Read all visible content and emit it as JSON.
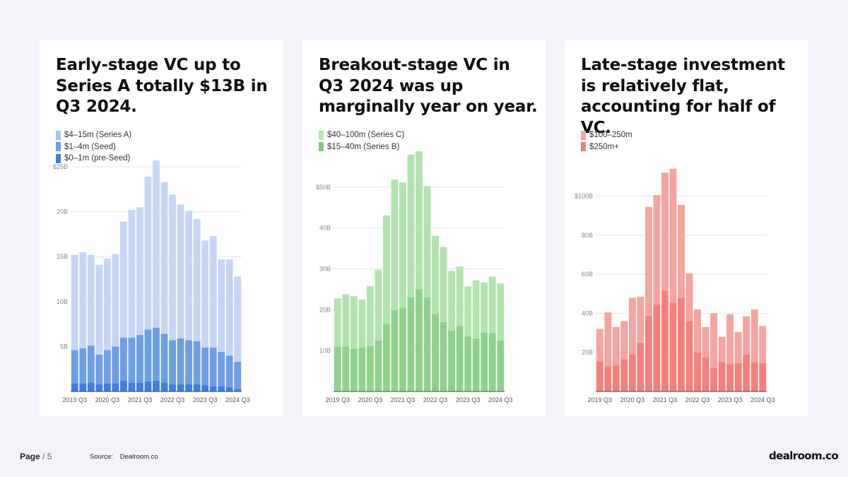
{
  "footer": {
    "page_label": "Page",
    "page_sep": "/",
    "page_number": "5",
    "source_label": "Source:",
    "source_name": "Dealroom.co",
    "logo_text": "dealroom.co"
  },
  "chart_data": [
    {
      "type": "bar",
      "stacked": true,
      "title": "Early-stage VC up to Series A totally $13B in Q3 2024.",
      "legend": [
        "$4–15m (Series A)",
        "$1–4m (Seed)",
        "$0–1m (pre-Seed)"
      ],
      "legend_colors": [
        "#aac4ef",
        "#6d9ee6",
        "#3d7ee5"
      ],
      "ylim": [
        0,
        25
      ],
      "yticks": [
        5,
        10,
        15,
        20,
        25
      ],
      "ytick_labels": [
        "5B",
        "10B",
        "15B",
        "20B",
        "$25B"
      ],
      "xtick_labels": [
        "2019 Q3",
        "2020 Q3",
        "2021 Q3",
        "2022 Q3",
        "2023 Q3",
        "2024 Q3"
      ],
      "categories": [
        "2019 Q3",
        "2019 Q4",
        "2020 Q1",
        "2020 Q2",
        "2020 Q3",
        "2020 Q4",
        "2021 Q1",
        "2021 Q2",
        "2021 Q3",
        "2021 Q4",
        "2022 Q1",
        "2022 Q2",
        "2022 Q3",
        "2022 Q4",
        "2023 Q1",
        "2023 Q2",
        "2023 Q3",
        "2023 Q4",
        "2024 Q1",
        "2024 Q2",
        "2024 Q3"
      ],
      "series": [
        {
          "name": "$0–1m (pre-Seed)",
          "color": "#3d7ee5",
          "values": [
            0.9,
            0.9,
            1.0,
            0.8,
            0.9,
            0.9,
            1.2,
            1.0,
            1.0,
            1.1,
            1.2,
            1.0,
            0.8,
            0.8,
            0.8,
            0.8,
            0.7,
            0.6,
            0.6,
            0.5,
            0.3
          ]
        },
        {
          "name": "$1–4m (Seed)",
          "color": "#6d9ee6",
          "values": [
            3.7,
            3.9,
            4.1,
            3.3,
            3.7,
            4.1,
            4.8,
            5.0,
            5.3,
            5.8,
            5.9,
            5.4,
            4.9,
            5.1,
            4.9,
            4.8,
            4.2,
            4.3,
            3.8,
            3.5,
            3.0
          ]
        },
        {
          "name": "$4–15m (Series A)",
          "color": "#c6d7f5",
          "values": [
            10.6,
            10.7,
            10.1,
            10.0,
            10.2,
            10.3,
            12.9,
            14.2,
            14.2,
            17.0,
            18.6,
            16.9,
            16.2,
            14.9,
            14.4,
            13.6,
            11.9,
            12.4,
            10.3,
            10.7,
            9.5
          ]
        }
      ]
    },
    {
      "type": "bar",
      "stacked": true,
      "title": "Breakout-stage VC in Q3 2024 was up marginally year on year.",
      "legend": [
        "$40–100m (Series C)",
        "$15–40m (Series B)"
      ],
      "legend_colors": [
        "#b6e6b3",
        "#7fcd7c"
      ],
      "ylim": [
        0,
        55
      ],
      "yticks": [
        10,
        20,
        30,
        40,
        50
      ],
      "ytick_labels": [
        "10B",
        "20B",
        "30B",
        "40B",
        "$50B"
      ],
      "xtick_labels": [
        "2019 Q3",
        "2020 Q3",
        "2021 Q3",
        "2022 Q3",
        "2023 Q3",
        "2024 Q3"
      ],
      "categories": [
        "2019 Q3",
        "2019 Q4",
        "2020 Q1",
        "2020 Q2",
        "2020 Q3",
        "2020 Q4",
        "2021 Q1",
        "2021 Q2",
        "2021 Q3",
        "2021 Q4",
        "2022 Q1",
        "2022 Q2",
        "2022 Q3",
        "2022 Q4",
        "2023 Q1",
        "2023 Q2",
        "2023 Q3",
        "2023 Q4",
        "2024 Q1",
        "2024 Q2",
        "2024 Q3"
      ],
      "series": [
        {
          "name": "$15–40m (Series B)",
          "color": "#8fd18c",
          "values": [
            11.0,
            11.0,
            10.5,
            10.8,
            11.2,
            12.5,
            16.5,
            20.0,
            20.5,
            23.0,
            25.0,
            23.0,
            19.0,
            17.0,
            15.0,
            16.0,
            13.5,
            13.0,
            14.5,
            14.3,
            12.5
          ]
        },
        {
          "name": "$40–100m (Series C)",
          "color": "#b3e4b0",
          "values": [
            11.8,
            12.8,
            12.8,
            11.7,
            14.6,
            17.3,
            26.6,
            31.9,
            30.7,
            35.0,
            33.8,
            27.3,
            19.1,
            18.4,
            14.5,
            14.6,
            12.2,
            14.2,
            12.2,
            13.8,
            14.0
          ]
        }
      ]
    },
    {
      "type": "bar",
      "stacked": true,
      "title": "Late-stage investment is relatively flat, accounting for half of VC.",
      "legend": [
        "$100–250m",
        "$250m+"
      ],
      "legend_colors": [
        "#f6a5a2",
        "#f17f7b"
      ],
      "ylim": [
        0,
        115
      ],
      "yticks": [
        20,
        40,
        60,
        80,
        100
      ],
      "ytick_labels": [
        "20B",
        "40B",
        "60B",
        "80B",
        "$100B"
      ],
      "xtick_labels": [
        "2019 Q3",
        "2020 Q3",
        "2021 Q3",
        "2022 Q3",
        "2023 Q3",
        "2024 Q3"
      ],
      "categories": [
        "2019 Q3",
        "2019 Q4",
        "2020 Q1",
        "2020 Q2",
        "2020 Q3",
        "2020 Q4",
        "2021 Q1",
        "2021 Q2",
        "2021 Q3",
        "2021 Q4",
        "2022 Q1",
        "2022 Q2",
        "2022 Q3",
        "2022 Q4",
        "2023 Q1",
        "2023 Q2",
        "2023 Q3",
        "2023 Q4",
        "2024 Q1",
        "2024 Q2",
        "2024 Q3"
      ],
      "series": [
        {
          "name": "$250m+",
          "color": "#f4807c",
          "values": [
            15.5,
            13.0,
            13.5,
            16.5,
            19.0,
            25.0,
            38.5,
            44.5,
            51.5,
            45.5,
            48.0,
            36.0,
            20.0,
            17.5,
            12.0,
            15.0,
            14.0,
            14.5,
            19.0,
            15.0,
            14.5
          ]
        },
        {
          "name": "$100–250m",
          "color": "#f7a4a1",
          "values": [
            16.5,
            27.5,
            19.5,
            19.5,
            29.0,
            23.5,
            56.0,
            56.0,
            60.5,
            68.5,
            47.5,
            24.5,
            22.0,
            15.5,
            28.0,
            13.0,
            25.5,
            16.0,
            19.5,
            27.0,
            19.0
          ]
        }
      ]
    }
  ]
}
